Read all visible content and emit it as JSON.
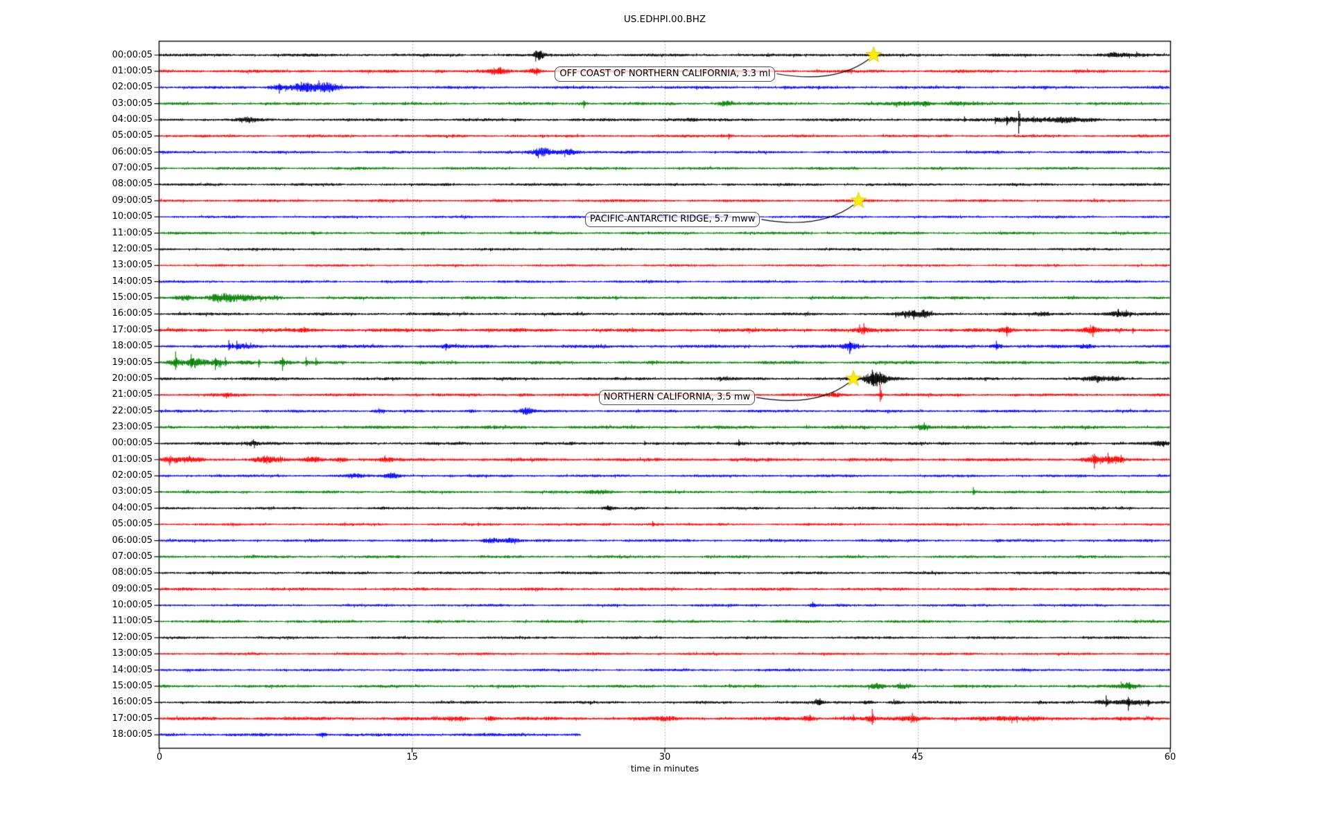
{
  "title": "US.EDHPI.00.BHZ",
  "chart_data": {
    "type": "line",
    "subtype": "seismogram_dayplot",
    "title": "US.EDHPI.00.BHZ",
    "xlabel": "time in minutes",
    "xlim": [
      0,
      60
    ],
    "xticks": [
      "0",
      "15",
      "30",
      "45",
      "60"
    ],
    "xtick_minutes": [
      0,
      15,
      30,
      45,
      60
    ],
    "grid": {
      "vertical_dotted_at_minutes": [
        15,
        30,
        45
      ],
      "grid_color": "#9a9a9a"
    },
    "trace_color_cycle": [
      "#000000",
      "#ff0000",
      "#0000ff",
      "#008000"
    ],
    "event_marker": {
      "shape": "star",
      "color": "#ffee00"
    },
    "events": [
      {
        "label": "OFF COAST OF NORTHERN CALIFORNIA, 3.3 ml",
        "trace_label": "00:00:05",
        "trace_index": 0,
        "minute": 42.4
      },
      {
        "label": "PACIFIC-ANTARCTIC RIDGE, 5.7 mww",
        "trace_label": "09:00:05",
        "trace_index": 9,
        "minute": 41.5
      },
      {
        "label": "NORTHERN CALIFORNIA, 3.5 mw",
        "trace_label": "20:00:05",
        "trace_index": 20,
        "minute": 41.2
      }
    ],
    "traces": [
      {
        "label": "00:00:05",
        "base": 1.6,
        "bursts": [
          [
            22.5,
            4,
            0.7
          ],
          [
            40,
            0.5,
            3
          ],
          [
            57,
            1.5,
            2.5
          ]
        ],
        "spikes": [
          [
            22.5,
            6
          ]
        ]
      },
      {
        "label": "01:00:05",
        "base": 1.7,
        "bursts": [
          [
            16.6,
            1.5,
            0.8
          ],
          [
            20,
            3,
            1.2
          ],
          [
            22.3,
            2.5,
            1
          ]
        ],
        "spikes": [
          [
            20.2,
            6
          ],
          [
            22.4,
            5
          ]
        ]
      },
      {
        "label": "02:00:05",
        "base": 1.6,
        "bursts": [
          [
            7.2,
            3,
            1.5
          ],
          [
            8.8,
            5,
            2.5
          ],
          [
            10,
            2.5,
            1.5
          ]
        ],
        "spikes": [
          [
            7.1,
            9
          ],
          [
            8.4,
            8
          ]
        ]
      },
      {
        "label": "03:00:05",
        "base": 1.6,
        "bursts": [
          [
            25.2,
            1.5,
            0.6
          ],
          [
            33.6,
            2.5,
            1.2
          ],
          [
            45,
            2,
            3
          ],
          [
            47.5,
            1.5,
            2
          ]
        ],
        "spikes": [
          [
            25.2,
            7
          ],
          [
            45.5,
            5
          ]
        ]
      },
      {
        "label": "04:00:05",
        "base": 1.6,
        "bursts": [
          [
            5.3,
            2.5,
            1
          ],
          [
            31,
            1.2,
            2
          ],
          [
            50.8,
            3,
            3
          ],
          [
            53.5,
            2,
            4
          ]
        ],
        "spikes": [
          [
            51,
            20
          ],
          [
            50.3,
            8
          ],
          [
            49.6,
            6
          ],
          [
            47.8,
            5
          ]
        ]
      },
      {
        "label": "05:00:05",
        "base": 1.5,
        "bursts": [
          [
            33.8,
            1.5,
            1
          ]
        ],
        "spikes": [
          [
            33.8,
            5
          ]
        ]
      },
      {
        "label": "06:00:05",
        "base": 1.5,
        "bursts": [
          [
            22.8,
            4,
            1.5
          ],
          [
            24.3,
            3,
            1.8
          ]
        ],
        "spikes": []
      },
      {
        "label": "07:00:05",
        "base": 1.5,
        "bursts": [],
        "spikes": []
      },
      {
        "label": "08:00:05",
        "base": 1.5,
        "bursts": [],
        "spikes": []
      },
      {
        "label": "09:00:05",
        "base": 1.5,
        "bursts": [],
        "spikes": []
      },
      {
        "label": "10:00:05",
        "base": 1.4,
        "bursts": [],
        "spikes": []
      },
      {
        "label": "11:00:05",
        "base": 1.5,
        "bursts": [],
        "spikes": []
      },
      {
        "label": "12:00:05",
        "base": 1.4,
        "bursts": [],
        "spikes": []
      },
      {
        "label": "13:00:05",
        "base": 1.3,
        "bursts": [],
        "spikes": []
      },
      {
        "label": "14:00:05",
        "base": 1.4,
        "bursts": [],
        "spikes": []
      },
      {
        "label": "15:00:05",
        "base": 1.6,
        "bursts": [
          [
            1.5,
            3,
            1.5
          ],
          [
            3.8,
            5,
            2
          ],
          [
            5.5,
            2,
            1.5
          ],
          [
            7,
            1.5,
            1
          ]
        ],
        "spikes": []
      },
      {
        "label": "16:00:05",
        "base": 1.6,
        "bursts": [
          [
            44.6,
            3,
            1.5
          ],
          [
            45.5,
            2,
            1
          ],
          [
            52.6,
            1.2,
            1
          ],
          [
            56.8,
            2.5,
            1.8
          ]
        ],
        "spikes": [
          [
            44.8,
            8
          ],
          [
            56.9,
            7
          ],
          [
            57.4,
            6
          ]
        ]
      },
      {
        "label": "17:00:05",
        "base": 2.0,
        "bursts": [
          [
            8.6,
            1.5,
            0.8
          ],
          [
            41.8,
            2,
            1
          ],
          [
            50.3,
            2,
            1
          ],
          [
            55.3,
            2,
            1.2
          ]
        ],
        "spikes": [
          [
            8.6,
            5
          ],
          [
            41.8,
            10
          ],
          [
            50.3,
            9
          ],
          [
            55.4,
            10
          ],
          [
            57.8,
            5
          ]
        ]
      },
      {
        "label": "18:00:05",
        "base": 1.8,
        "bursts": [
          [
            5,
            2,
            1
          ],
          [
            8.3,
            1.5,
            0.8
          ],
          [
            17,
            2,
            0.8
          ],
          [
            41,
            3,
            1.2
          ],
          [
            49.7,
            2,
            1
          ],
          [
            55,
            1.5,
            1
          ]
        ],
        "spikes": [
          [
            4.1,
            9
          ],
          [
            4.6,
            8
          ],
          [
            41,
            11
          ],
          [
            49.7,
            8
          ],
          [
            17,
            6
          ]
        ]
      },
      {
        "label": "19:00:05",
        "base": 1.7,
        "bursts": [
          [
            1,
            3,
            1
          ],
          [
            2.2,
            3,
            1.5
          ],
          [
            3.4,
            2.5,
            1
          ],
          [
            5,
            2,
            1.5
          ],
          [
            7.4,
            1.5,
            1.2
          ]
        ],
        "spikes": [
          [
            0.95,
            16
          ],
          [
            1.9,
            12
          ],
          [
            3.3,
            11
          ],
          [
            3.9,
            8
          ],
          [
            5.9,
            7
          ],
          [
            7.3,
            12
          ],
          [
            8.7,
            8
          ],
          [
            9.3,
            7
          ]
        ]
      },
      {
        "label": "20:00:05",
        "base": 1.6,
        "bursts": [
          [
            33.4,
            1.2,
            0.8
          ],
          [
            42.4,
            6,
            1.4
          ],
          [
            43.2,
            3,
            1.5
          ],
          [
            55.6,
            2.5,
            1.2
          ],
          [
            56.8,
            2,
            1
          ]
        ],
        "spikes": [
          [
            42.3,
            13
          ],
          [
            42.6,
            11
          ],
          [
            55.7,
            6
          ]
        ]
      },
      {
        "label": "21:00:05",
        "base": 1.6,
        "bursts": [
          [
            4,
            1.5,
            0.8
          ],
          [
            21.5,
            1.5,
            0.8
          ],
          [
            40,
            1.5,
            1
          ],
          [
            42.8,
            2,
            0.6
          ]
        ],
        "spikes": [
          [
            42.8,
            15
          ],
          [
            40,
            5
          ],
          [
            4,
            4
          ]
        ]
      },
      {
        "label": "22:00:05",
        "base": 1.5,
        "bursts": [
          [
            13,
            1.5,
            0.8
          ],
          [
            18.6,
            1.5,
            0.8
          ],
          [
            21.8,
            2.5,
            1
          ]
        ],
        "spikes": []
      },
      {
        "label": "23:00:05",
        "base": 1.8,
        "bursts": [
          [
            45.3,
            2.5,
            1.2
          ]
        ],
        "spikes": [
          [
            45.4,
            7
          ]
        ]
      },
      {
        "label": "00:00:05",
        "base": 1.6,
        "bursts": [
          [
            5.5,
            2.5,
            1.2
          ],
          [
            6.8,
            2,
            1
          ],
          [
            34.4,
            1.5,
            1
          ],
          [
            54.5,
            1.5,
            1
          ],
          [
            59.4,
            2,
            0.8
          ]
        ],
        "spikes": [
          [
            34.4,
            6
          ],
          [
            59.6,
            5
          ],
          [
            28.8,
            4
          ]
        ]
      },
      {
        "label": "01:00:05",
        "base": 1.8,
        "bursts": [
          [
            0.8,
            2.5,
            1
          ],
          [
            2,
            2,
            1.5
          ],
          [
            6.3,
            3,
            1.5
          ],
          [
            9.2,
            2.5,
            1.2
          ],
          [
            10.8,
            2,
            1
          ],
          [
            13.4,
            2,
            0.8
          ],
          [
            55.6,
            3,
            1.5
          ],
          [
            56.8,
            2.5,
            1
          ]
        ],
        "spikes": [
          [
            55.5,
            13
          ],
          [
            56.3,
            10
          ],
          [
            57.1,
            7
          ],
          [
            6.2,
            6
          ]
        ]
      },
      {
        "label": "02:00:05",
        "base": 1.5,
        "bursts": [
          [
            11.5,
            2,
            1
          ],
          [
            13.9,
            2.5,
            1.2
          ]
        ],
        "spikes": []
      },
      {
        "label": "03:00:05",
        "base": 1.5,
        "bursts": [
          [
            26.2,
            3.5,
            1.3
          ],
          [
            48.3,
            1.2,
            0.8
          ]
        ],
        "spikes": [
          [
            48.3,
            7
          ]
        ]
      },
      {
        "label": "04:00:05",
        "base": 1.4,
        "bursts": [
          [
            26.6,
            1.5,
            0.6
          ]
        ],
        "spikes": [
          [
            26.6,
            4
          ]
        ]
      },
      {
        "label": "05:00:05",
        "base": 1.4,
        "bursts": [
          [
            29.3,
            1.5,
            1
          ]
        ],
        "spikes": [
          [
            29.3,
            5
          ]
        ]
      },
      {
        "label": "06:00:05",
        "base": 1.5,
        "bursts": [
          [
            19.7,
            3.5,
            1.2
          ],
          [
            20.8,
            2.5,
            1
          ]
        ],
        "spikes": []
      },
      {
        "label": "07:00:05",
        "base": 1.5,
        "bursts": [],
        "spikes": []
      },
      {
        "label": "08:00:05",
        "base": 1.5,
        "bursts": [],
        "spikes": []
      },
      {
        "label": "09:00:05",
        "base": 1.6,
        "bursts": [],
        "spikes": []
      },
      {
        "label": "10:00:05",
        "base": 1.4,
        "bursts": [
          [
            38.8,
            1,
            0.6
          ]
        ],
        "spikes": [
          [
            38.8,
            5
          ]
        ]
      },
      {
        "label": "11:00:05",
        "base": 1.5,
        "bursts": [],
        "spikes": []
      },
      {
        "label": "12:00:05",
        "base": 1.4,
        "bursts": [],
        "spikes": []
      },
      {
        "label": "13:00:05",
        "base": 1.4,
        "bursts": [],
        "spikes": []
      },
      {
        "label": "14:00:05",
        "base": 1.4,
        "bursts": [],
        "spikes": []
      },
      {
        "label": "15:00:05",
        "base": 1.6,
        "bursts": [
          [
            42.6,
            2,
            1
          ],
          [
            44.2,
            2.5,
            1.2
          ],
          [
            57.5,
            3.5,
            1.5
          ]
        ],
        "spikes": [
          [
            57.6,
            6
          ]
        ]
      },
      {
        "label": "16:00:05",
        "base": 1.5,
        "bursts": [
          [
            39.2,
            1.5,
            0.8
          ],
          [
            42,
            1.5,
            1
          ],
          [
            43.6,
            1.5,
            0.8
          ],
          [
            56.3,
            3,
            1.5
          ],
          [
            57.4,
            3,
            1.2
          ],
          [
            58.3,
            2,
            1
          ]
        ],
        "spikes": [
          [
            56.2,
            10
          ],
          [
            57.5,
            12
          ],
          [
            39.2,
            6
          ],
          [
            58.7,
            6
          ]
        ]
      },
      {
        "label": "17:00:05",
        "base": 1.9,
        "bursts": [
          [
            17.6,
            2.5,
            1
          ],
          [
            19.6,
            2,
            0.8
          ],
          [
            30,
            1,
            2
          ],
          [
            38.5,
            2,
            1
          ],
          [
            41,
            2,
            1
          ],
          [
            42.2,
            2,
            0.8
          ],
          [
            44.6,
            2,
            1.2
          ],
          [
            50,
            1,
            8
          ]
        ],
        "spikes": [
          [
            42.3,
            14
          ],
          [
            44.7,
            8
          ],
          [
            38.6,
            6
          ],
          [
            41.2,
            6
          ]
        ]
      },
      {
        "label": "18:00:05",
        "base": 1.7,
        "end": 25,
        "bursts": [
          [
            9.7,
            1.5,
            0.6
          ]
        ],
        "spikes": [
          [
            9.7,
            4
          ]
        ]
      }
    ]
  }
}
